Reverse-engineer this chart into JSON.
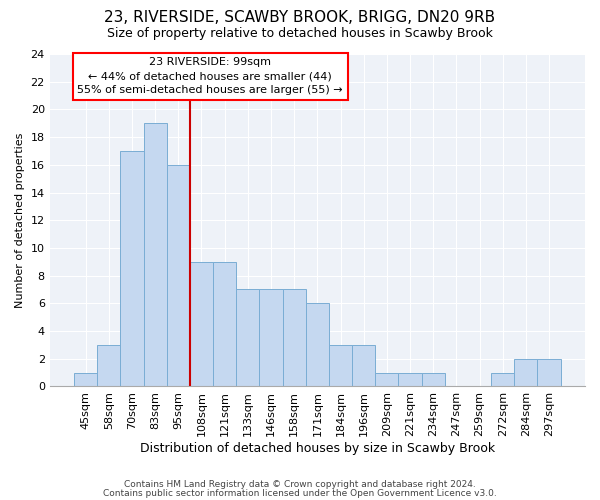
{
  "title1": "23, RIVERSIDE, SCAWBY BROOK, BRIGG, DN20 9RB",
  "title2": "Size of property relative to detached houses in Scawby Brook",
  "xlabel": "Distribution of detached houses by size in Scawby Brook",
  "ylabel": "Number of detached properties",
  "categories": [
    "45sqm",
    "58sqm",
    "70sqm",
    "83sqm",
    "95sqm",
    "108sqm",
    "121sqm",
    "133sqm",
    "146sqm",
    "158sqm",
    "171sqm",
    "184sqm",
    "196sqm",
    "209sqm",
    "221sqm",
    "234sqm",
    "247sqm",
    "259sqm",
    "272sqm",
    "284sqm",
    "297sqm"
  ],
  "values": [
    1,
    3,
    17,
    19,
    16,
    9,
    9,
    7,
    7,
    7,
    6,
    3,
    3,
    1,
    1,
    1,
    0,
    0,
    1,
    2,
    2
  ],
  "bar_color": "#c5d8f0",
  "bar_edge_color": "#7aadd4",
  "vline_x": 4.5,
  "vline_color": "#cc0000",
  "annotation_line1": "23 RIVERSIDE: 99sqm",
  "annotation_line2": "← 44% of detached houses are smaller (44)",
  "annotation_line3": "55% of semi-detached houses are larger (55) →",
  "ylim": [
    0,
    24
  ],
  "yticks": [
    0,
    2,
    4,
    6,
    8,
    10,
    12,
    14,
    16,
    18,
    20,
    22,
    24
  ],
  "footer1": "Contains HM Land Registry data © Crown copyright and database right 2024.",
  "footer2": "Contains public sector information licensed under the Open Government Licence v3.0.",
  "bg_color": "#ffffff",
  "plot_bg_color": "#eef2f8",
  "grid_color": "#ffffff",
  "title1_fontsize": 11,
  "title2_fontsize": 9,
  "xlabel_fontsize": 9,
  "ylabel_fontsize": 8,
  "tick_fontsize": 8,
  "footer_fontsize": 6.5
}
